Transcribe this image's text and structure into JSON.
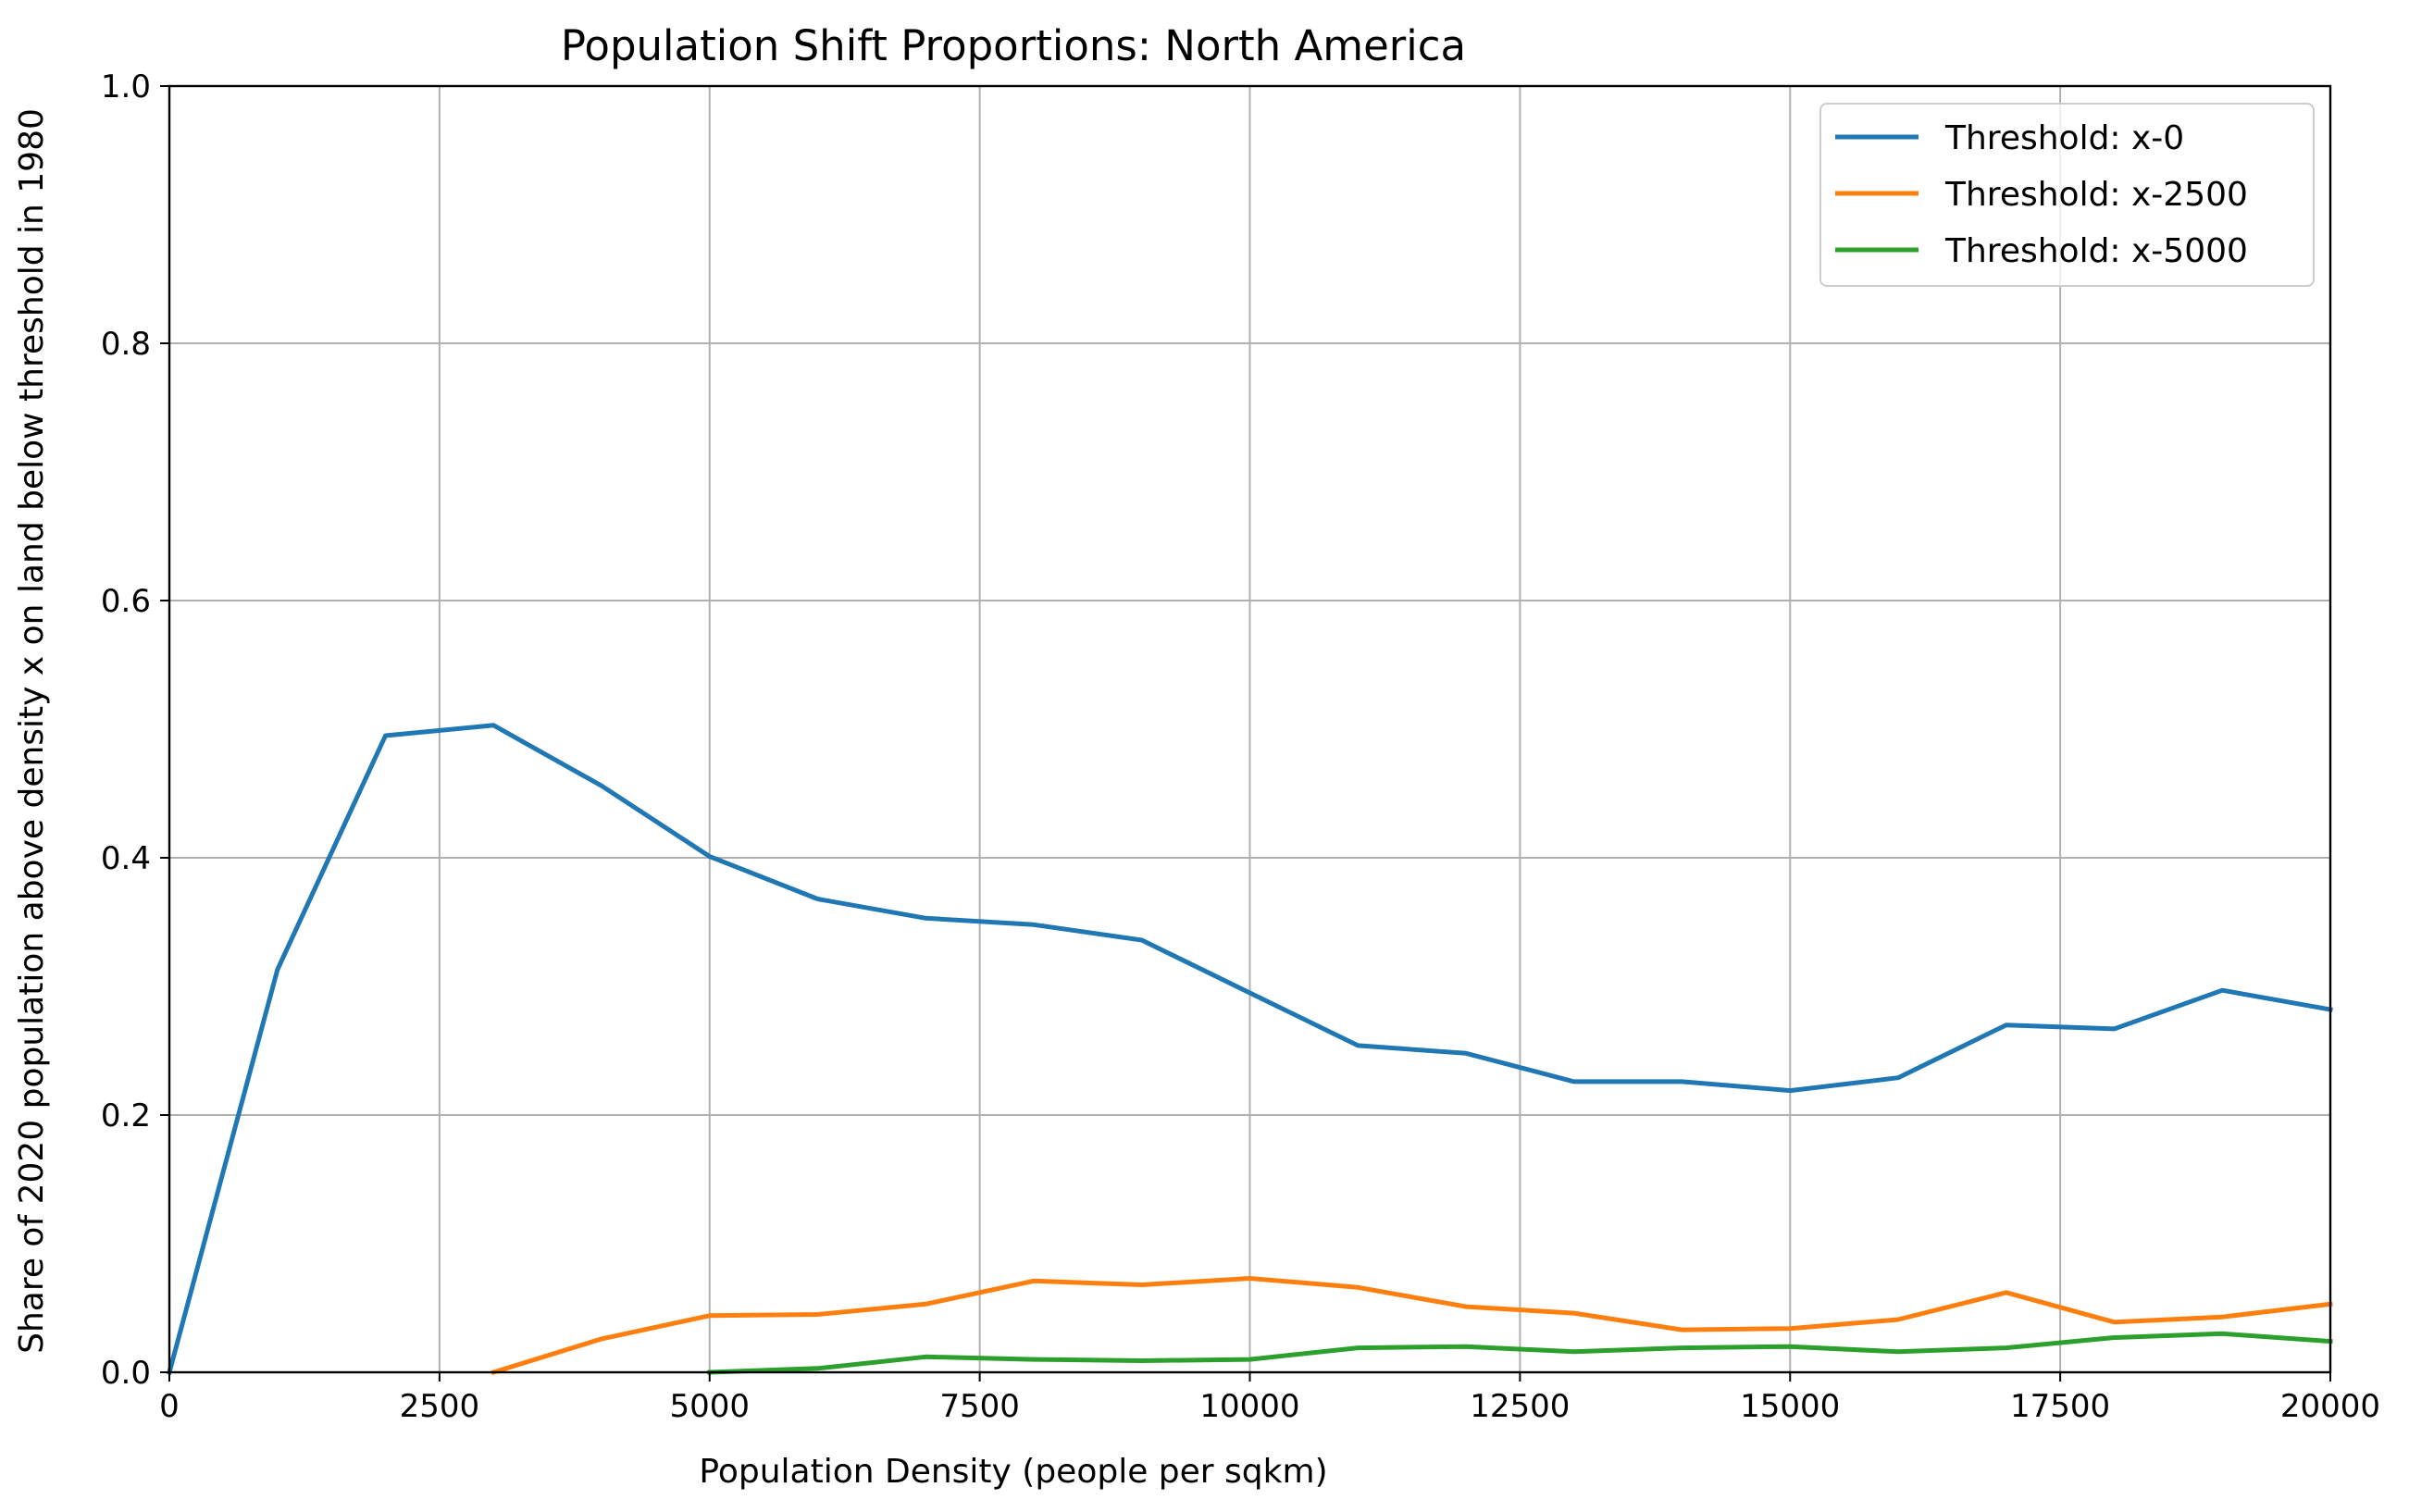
{
  "chart_data": {
    "type": "line",
    "title": "Population Shift Proportions: North America",
    "xlabel": "Population Density (people per sqkm)",
    "ylabel": "Share of 2020 population above density x on land below threshold in 1980",
    "xlim": [
      0,
      20000
    ],
    "ylim": [
      0,
      1.0
    ],
    "xticks": [
      0,
      2500,
      5000,
      7500,
      10000,
      12500,
      15000,
      17500,
      20000
    ],
    "yticks": [
      0.0,
      0.2,
      0.4,
      0.6,
      0.8,
      1.0
    ],
    "xtick_labels": [
      "0",
      "2500",
      "5000",
      "7500",
      "10000",
      "12500",
      "15000",
      "17500",
      "20000"
    ],
    "ytick_labels": [
      "0.0",
      "0.2",
      "0.4",
      "0.6",
      "0.8",
      "1.0"
    ],
    "grid": true,
    "legend_position": "top-right",
    "series": [
      {
        "name": "Threshold: x-0",
        "color": "#1f77b4",
        "x": [
          0,
          1000,
          2000,
          3000,
          4000,
          5000,
          6000,
          7000,
          8000,
          9000,
          10000,
          11000,
          12000,
          13000,
          14000,
          15000,
          16000,
          17000,
          18000,
          19000,
          20000
        ],
        "y": [
          0.0,
          0.313,
          0.495,
          0.503,
          0.456,
          0.401,
          0.368,
          0.353,
          0.348,
          0.336,
          0.295,
          0.254,
          0.248,
          0.226,
          0.226,
          0.219,
          0.229,
          0.27,
          0.267,
          0.297,
          0.282
        ]
      },
      {
        "name": "Threshold: x-2500",
        "color": "#ff7f0e",
        "x": [
          3000,
          4000,
          5000,
          6000,
          7000,
          8000,
          9000,
          10000,
          11000,
          12000,
          13000,
          14000,
          15000,
          16000,
          17000,
          18000,
          19000,
          20000
        ],
        "y": [
          0.0,
          0.026,
          0.044,
          0.045,
          0.053,
          0.071,
          0.068,
          0.073,
          0.066,
          0.051,
          0.046,
          0.033,
          0.034,
          0.041,
          0.062,
          0.039,
          0.043,
          0.053
        ]
      },
      {
        "name": "Threshold: x-5000",
        "color": "#2ca02c",
        "x": [
          5000,
          6000,
          7000,
          8000,
          9000,
          10000,
          11000,
          12000,
          13000,
          14000,
          15000,
          16000,
          17000,
          18000,
          19000,
          20000
        ],
        "y": [
          0.0,
          0.003,
          0.012,
          0.01,
          0.009,
          0.01,
          0.019,
          0.02,
          0.016,
          0.019,
          0.02,
          0.016,
          0.019,
          0.027,
          0.03,
          0.024
        ]
      }
    ]
  }
}
